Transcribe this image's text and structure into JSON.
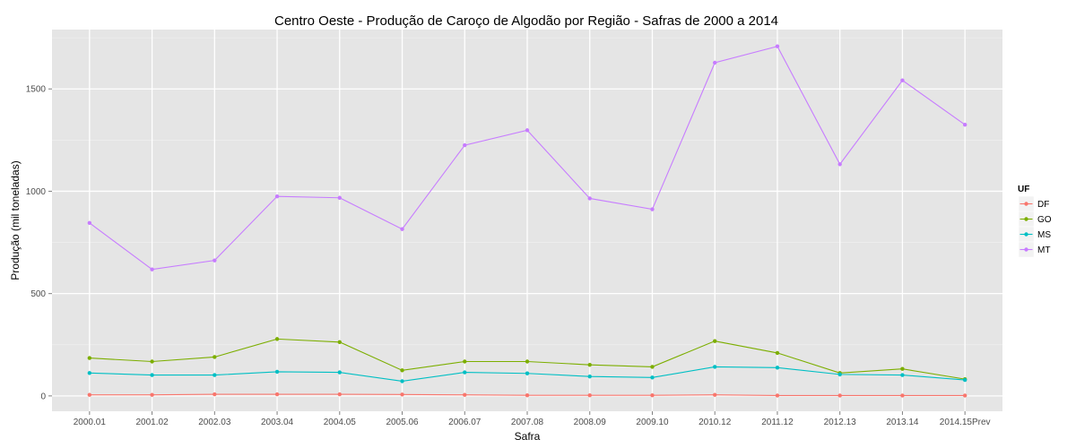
{
  "chart_data": {
    "type": "line",
    "title": "Centro Oeste  - Produção de Caroço de Algodão por Região - Safras de 2000 a 2014",
    "xlabel": "Safra",
    "ylabel": "Produção (mil toneladas)",
    "categories": [
      "2000.01",
      "2001.02",
      "2002.03",
      "2003.04",
      "2004.05",
      "2005.06",
      "2006.07",
      "2007.08",
      "2008.09",
      "2009.10",
      "2010.12",
      "2011.12",
      "2012.13",
      "2013.14",
      "2014.15Prev"
    ],
    "yticks": [
      0,
      500,
      1000,
      1500
    ],
    "ylim": [
      -75,
      1790
    ],
    "grid": true,
    "legend": {
      "title": "UF",
      "position": "right"
    },
    "series": [
      {
        "name": "DF",
        "color": "#F8766D",
        "values": [
          5,
          5,
          8,
          8,
          8,
          7,
          5,
          3,
          3,
          3,
          5,
          2,
          2,
          2,
          2
        ]
      },
      {
        "name": "GO",
        "color": "#7CAE00",
        "values": [
          185,
          168,
          190,
          278,
          263,
          125,
          168,
          168,
          152,
          142,
          268,
          210,
          112,
          132,
          82
        ]
      },
      {
        "name": "MS",
        "color": "#00BFC4",
        "values": [
          112,
          102,
          102,
          118,
          115,
          72,
          115,
          110,
          95,
          90,
          142,
          138,
          105,
          102,
          78
        ]
      },
      {
        "name": "MT",
        "color": "#C77CFF",
        "values": [
          845,
          618,
          662,
          975,
          968,
          815,
          1225,
          1298,
          965,
          912,
          1628,
          1708,
          1132,
          1542,
          1325
        ]
      }
    ]
  }
}
